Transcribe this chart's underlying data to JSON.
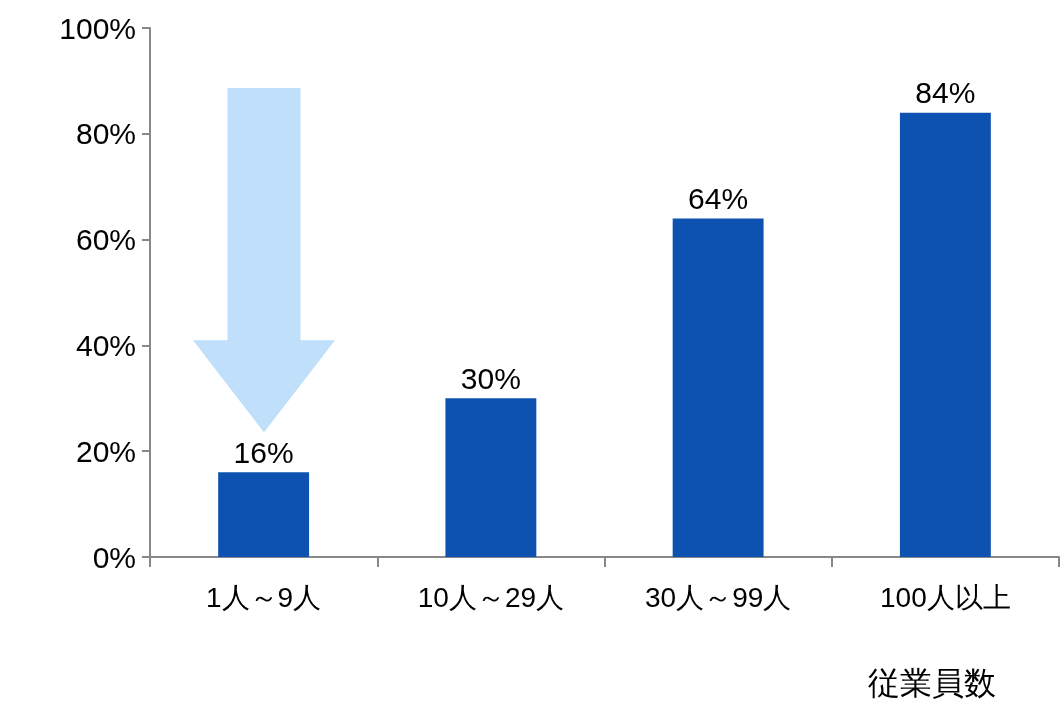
{
  "chart_data": {
    "type": "bar",
    "xlabel": "従業員数",
    "categories": [
      "1人～9人",
      "10人～29人",
      "30人～99人",
      "100人以上"
    ],
    "values": [
      16,
      30,
      64,
      84
    ],
    "color": "#0d52b1",
    "value_labels": [
      "16%",
      "30%",
      "64%",
      "84%"
    ],
    "ylim": [
      0,
      100
    ],
    "yticks": [
      {
        "value": 0,
        "label": "0%"
      },
      {
        "value": 20,
        "label": "20%"
      },
      {
        "value": 40,
        "label": "40%"
      },
      {
        "value": 60,
        "label": "60%"
      },
      {
        "value": 80,
        "label": "80%"
      },
      {
        "value": 100,
        "label": "100%"
      }
    ],
    "grid": false
  }
}
